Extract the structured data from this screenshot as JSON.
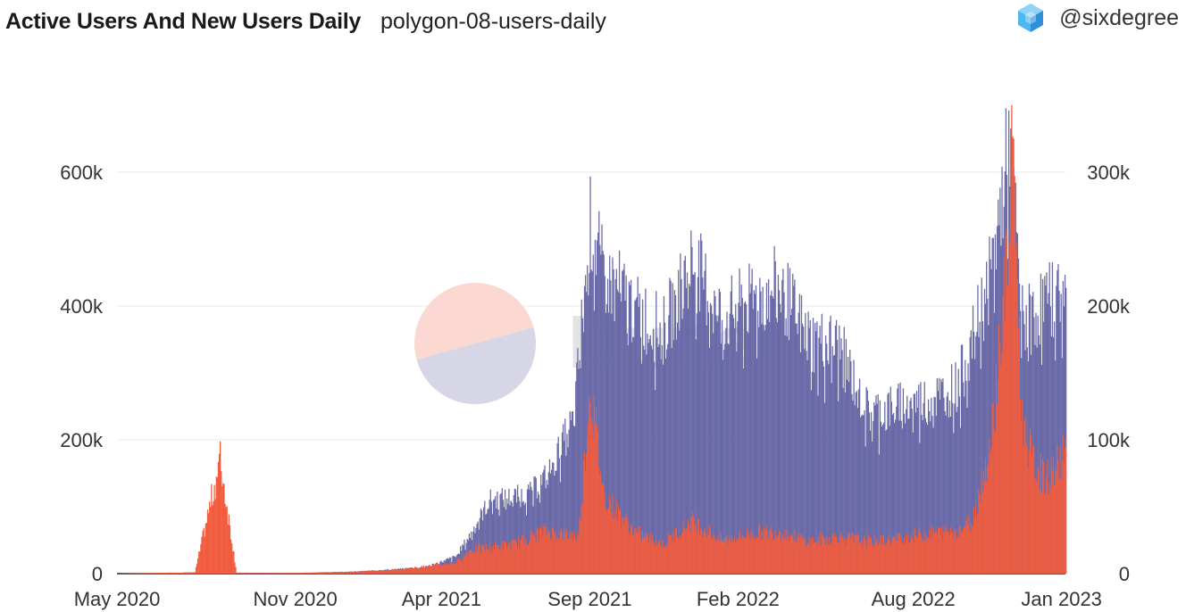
{
  "header": {
    "title": "Active Users And New Users Daily",
    "subtitle": "polygon-08-users-daily",
    "brand_handle": "@sixdegree",
    "brand_icon": "cube-logo-icon",
    "watermark": "Dune"
  },
  "colors": {
    "active_users": "#6b6aa8",
    "new_users": "#f25c3e",
    "gridline": "#e8e8e8",
    "watermark_top": "#fbd9d2",
    "watermark_bottom": "#d6d6e6"
  },
  "chart_data": {
    "type": "bar",
    "title": "Active Users And New Users Daily",
    "xlabel": "",
    "ylabel": "",
    "x_ticks": [
      "May 2020",
      "Nov 2020",
      "Apr 2021",
      "Sep 2021",
      "Feb 2022",
      "Aug 2022",
      "Jan 2023"
    ],
    "y_left": {
      "ticks": [
        "0",
        "200k",
        "400k",
        "600k"
      ],
      "ylim": [
        0,
        760000
      ]
    },
    "y_right": {
      "ticks": [
        "0",
        "100k",
        "200k",
        "300k"
      ],
      "ylim": [
        0,
        380000
      ]
    },
    "grid": true,
    "legend": "none",
    "series": [
      {
        "axis": "left",
        "color": "#6b6aa8",
        "points": [
          [
            "2020-05-01",
            0
          ],
          [
            "2020-08-01",
            1000
          ],
          [
            "2020-09-01",
            1500
          ],
          [
            "2020-11-01",
            1000
          ],
          [
            "2021-01-01",
            3000
          ],
          [
            "2021-02-15",
            7000
          ],
          [
            "2021-03-15",
            10000
          ],
          [
            "2021-04-15",
            25000
          ],
          [
            "2021-05-01",
            60000
          ],
          [
            "2021-05-20",
            110000
          ],
          [
            "2021-06-15",
            115000
          ],
          [
            "2021-07-01",
            120000
          ],
          [
            "2021-07-20",
            150000
          ],
          [
            "2021-08-15",
            230000
          ],
          [
            "2021-09-01",
            520000
          ],
          [
            "2021-09-15",
            450000
          ],
          [
            "2021-10-15",
            400000
          ],
          [
            "2021-11-15",
            360000
          ],
          [
            "2021-12-15",
            470000
          ],
          [
            "2022-01-15",
            380000
          ],
          [
            "2022-02-15",
            410000
          ],
          [
            "2022-03-15",
            430000
          ],
          [
            "2022-04-15",
            350000
          ],
          [
            "2022-05-15",
            340000
          ],
          [
            "2022-06-15",
            240000
          ],
          [
            "2022-07-15",
            250000
          ],
          [
            "2022-08-15",
            260000
          ],
          [
            "2022-09-15",
            280000
          ],
          [
            "2022-10-01",
            350000
          ],
          [
            "2022-10-20",
            450000
          ],
          [
            "2022-11-08",
            650000
          ],
          [
            "2022-11-20",
            380000
          ],
          [
            "2022-12-01",
            380000
          ],
          [
            "2022-12-15",
            410000
          ],
          [
            "2023-01-05",
            420000
          ]
        ]
      },
      {
        "axis": "right",
        "color": "#f25c3e",
        "points": [
          [
            "2020-05-01",
            0
          ],
          [
            "2020-07-20",
            1000
          ],
          [
            "2020-08-15",
            85000
          ],
          [
            "2020-09-01",
            500
          ],
          [
            "2020-11-01",
            500
          ],
          [
            "2021-01-01",
            1500
          ],
          [
            "2021-02-15",
            3000
          ],
          [
            "2021-04-15",
            8000
          ],
          [
            "2021-05-01",
            18000
          ],
          [
            "2021-06-15",
            22000
          ],
          [
            "2021-07-15",
            32000
          ],
          [
            "2021-08-01",
            30000
          ],
          [
            "2021-08-20",
            28000
          ],
          [
            "2021-09-01",
            140000
          ],
          [
            "2021-09-15",
            60000
          ],
          [
            "2021-10-15",
            32000
          ],
          [
            "2021-11-15",
            22000
          ],
          [
            "2021-12-15",
            40000
          ],
          [
            "2022-01-15",
            25000
          ],
          [
            "2022-02-15",
            30000
          ],
          [
            "2022-03-15",
            32000
          ],
          [
            "2022-04-15",
            24000
          ],
          [
            "2022-05-15",
            28000
          ],
          [
            "2022-06-15",
            24000
          ],
          [
            "2022-07-15",
            26000
          ],
          [
            "2022-08-15",
            30000
          ],
          [
            "2022-09-15",
            32000
          ],
          [
            "2022-10-01",
            40000
          ],
          [
            "2022-10-20",
            100000
          ],
          [
            "2022-11-05",
            230000
          ],
          [
            "2022-11-12",
            320000
          ],
          [
            "2022-11-20",
            120000
          ],
          [
            "2022-12-01",
            85000
          ],
          [
            "2022-12-15",
            70000
          ],
          [
            "2023-01-05",
            90000
          ]
        ]
      }
    ]
  }
}
